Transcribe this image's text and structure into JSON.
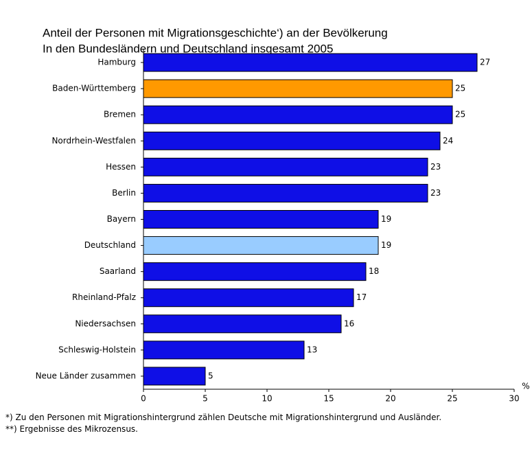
{
  "chart_data": {
    "type": "bar",
    "horizontal": true,
    "title": "Anteil der Personen mit Migrationsgeschichte‘) an der Bevölkerung",
    "subtitle": "In den Bundesländern und Deutschland insgesamt 2005",
    "categories": [
      "Hamburg",
      "Baden-Württemberg",
      "Bremen",
      "Nordrhein-Westfalen",
      "Hessen",
      "Berlin",
      "Bayern",
      "Deutschland",
      "Saarland",
      "Rheinland-Pfalz",
      "Niedersachsen",
      "Schleswig-Holstein",
      "Neue Länder zusammen"
    ],
    "values": [
      27,
      25,
      25,
      24,
      23,
      23,
      19,
      19,
      18,
      17,
      16,
      13,
      5
    ],
    "colors": [
      "#0f0fe6",
      "#ff9900",
      "#0f0fe6",
      "#0f0fe6",
      "#0f0fe6",
      "#0f0fe6",
      "#0f0fe6",
      "#99ccff",
      "#0f0fe6",
      "#0f0fe6",
      "#0f0fe6",
      "#0f0fe6",
      "#0f0fe6"
    ],
    "xlim": [
      0,
      30
    ],
    "xticks": [
      0,
      5,
      10,
      15,
      20,
      25,
      30
    ],
    "xlabel": "%",
    "grid": false,
    "notes": [
      "*) Zu den Personen mit Migrationshintergrund zählen Deutsche mit Migrationshintergrund und Ausländer.",
      "**) Ergebnisse des Mikrozensus."
    ]
  }
}
